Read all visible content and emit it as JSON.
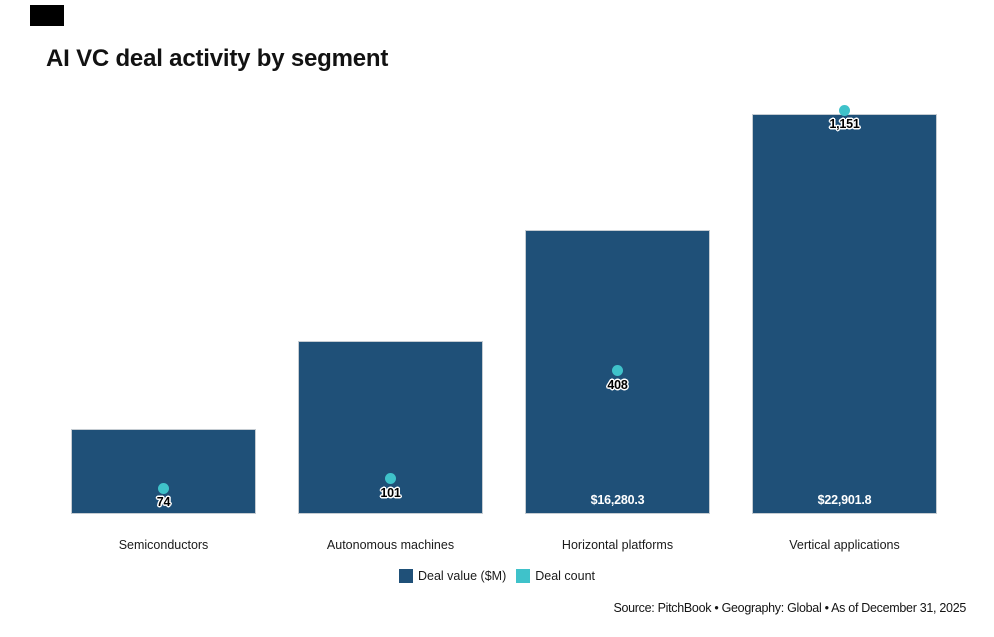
{
  "title": "AI VC deal activity by segment",
  "source_line": "Source: PitchBook • Geography: Global • As of December 31, 2025",
  "colors": {
    "bar": "#1f5078",
    "dot": "#3fc2ca",
    "bar_border": "#c5ccd2",
    "background": "#ffffff"
  },
  "legend": {
    "items": [
      {
        "label": "Deal value ($M)",
        "color": "#1f5078"
      },
      {
        "label": "Deal count",
        "color": "#3fc2ca"
      }
    ]
  },
  "chart_data": {
    "type": "bar",
    "title": "AI VC deal activity by segment",
    "categories": [
      "Semiconductors",
      "Autonomous machines",
      "Horizontal platforms",
      "Vertical applications"
    ],
    "series": [
      {
        "name": "Deal value ($M)",
        "render": "bar",
        "color": "#1f5078",
        "values": [
          4870,
          9900,
          16280.3,
          22901.8
        ],
        "value_labels": [
          "",
          "",
          "$16,280.3",
          "$22,901.8"
        ]
      },
      {
        "name": "Deal count",
        "render": "point",
        "color": "#3fc2ca",
        "values": [
          74,
          101,
          408,
          1151
        ],
        "value_labels": [
          "74",
          "101",
          "408",
          "1,151"
        ]
      }
    ],
    "value_axis_range": [
      0,
      22901.8
    ],
    "count_axis_range": [
      0,
      1151
    ],
    "grid": false,
    "axes_shown": false,
    "legend_position": "bottom"
  }
}
